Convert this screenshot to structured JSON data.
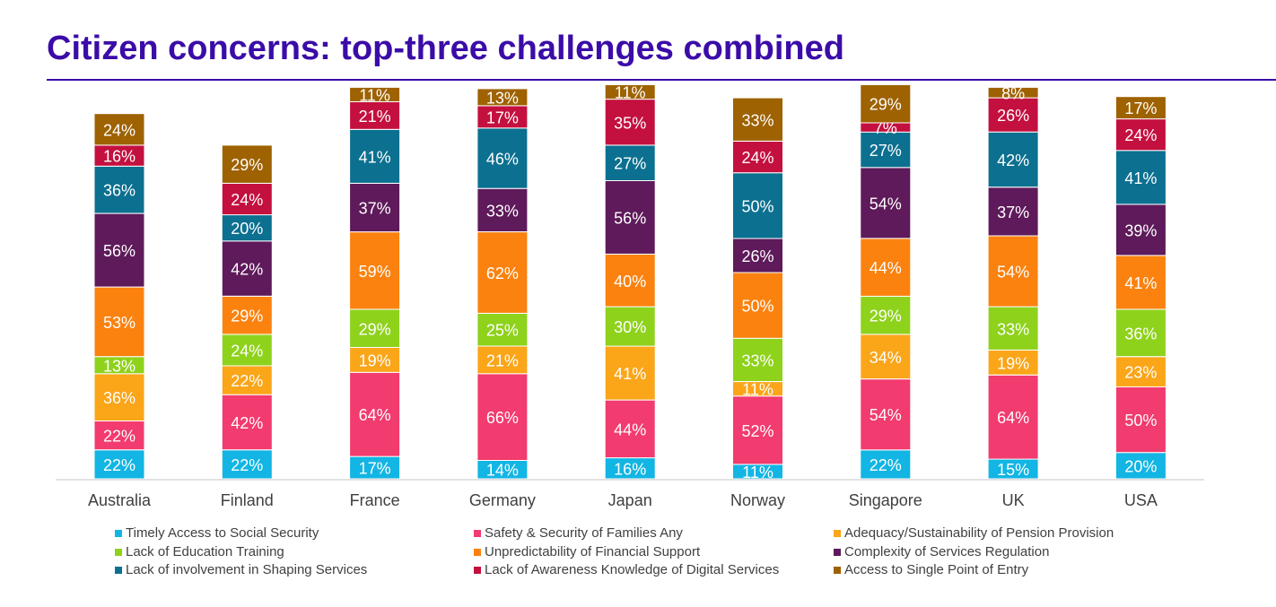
{
  "header": {
    "title": "Citizen concerns: top-three challenges combined"
  },
  "chart_data": {
    "type": "bar",
    "stacked": true,
    "title": "Citizen concerns: top-three challenges combined",
    "xlabel": "",
    "ylabel": "",
    "grid": false,
    "legend_position": "bottom",
    "categories": [
      "Australia",
      "Finland",
      "France",
      "Germany",
      "Japan",
      "Norway",
      "Singapore",
      "UK",
      "USA"
    ],
    "series": [
      {
        "name": "Timely Access to Social Security",
        "color": "#12b5e3",
        "values": [
          22,
          22,
          17,
          14,
          16,
          11,
          22,
          15,
          20
        ]
      },
      {
        "name": "Safety & Security of Families Any",
        "color": "#f23b6e",
        "values": [
          22,
          42,
          64,
          66,
          44,
          52,
          54,
          64,
          50
        ]
      },
      {
        "name": "Adequacy/Sustainability of Pension Provision",
        "color": "#fba519",
        "values": [
          36,
          22,
          19,
          21,
          41,
          11,
          34,
          19,
          23
        ]
      },
      {
        "name": "Lack of Education Training",
        "color": "#8ed21c",
        "values": [
          13,
          24,
          29,
          25,
          30,
          33,
          29,
          33,
          36
        ]
      },
      {
        "name": "Unpredictability of Financial Support",
        "color": "#fb820f",
        "values": [
          53,
          29,
          59,
          62,
          40,
          50,
          44,
          54,
          41
        ]
      },
      {
        "name": "Complexity of Services Regulation",
        "color": "#5e1a5a",
        "values": [
          56,
          42,
          37,
          33,
          56,
          26,
          54,
          37,
          39
        ]
      },
      {
        "name": "Lack of involvement in Shaping Services",
        "color": "#0c7090",
        "values": [
          36,
          20,
          41,
          46,
          27,
          50,
          27,
          42,
          41
        ]
      },
      {
        "name": "Lack of Awareness Knowledge of Digital Services",
        "color": "#c4103f",
        "values": [
          16,
          24,
          21,
          17,
          35,
          24,
          7,
          26,
          24
        ]
      },
      {
        "name": "Access to Single Point of Entry",
        "color": "#9e6200",
        "values": [
          24,
          29,
          11,
          13,
          11,
          33,
          29,
          8,
          17
        ]
      }
    ]
  }
}
